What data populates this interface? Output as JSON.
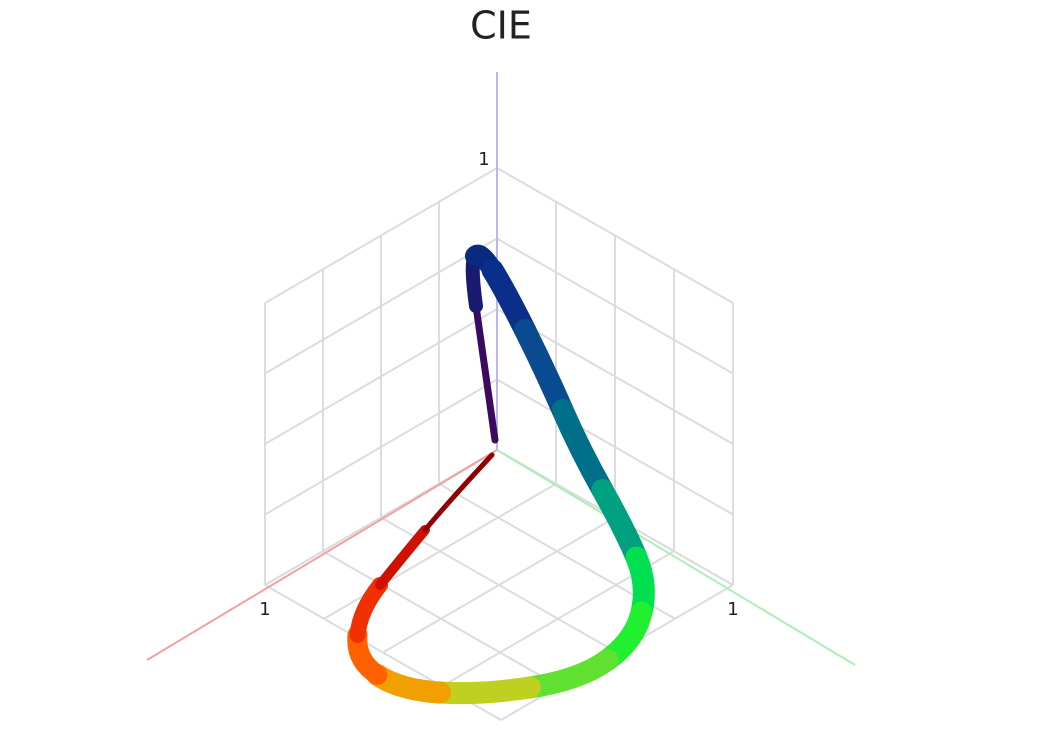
{
  "title": "CIE",
  "axes": {
    "z_label": "1",
    "x_label": "1",
    "y_label": "1"
  }
}
